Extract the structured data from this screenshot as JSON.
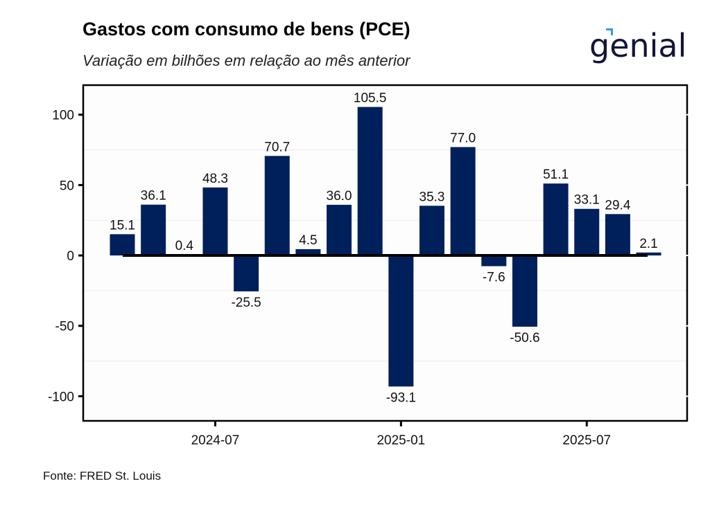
{
  "header": {
    "title": "Gastos com consumo de bens (PCE)",
    "subtitle": "Variação em bilhões em relação ao mês anterior"
  },
  "logo": {
    "text": "genial",
    "icon": "genial-logo-icon",
    "accent_color": "#2e9bf0",
    "text_color": "#13143a"
  },
  "footer": {
    "source": "Fonte: FRED St. Louis"
  },
  "colors": {
    "bar": "#00205b",
    "zero_line": "#000000",
    "grid": "#ececec",
    "axis": "#000000"
  },
  "chart_data": {
    "type": "bar",
    "title": "Gastos com consumo de bens (PCE)",
    "subtitle": "Variação em bilhões em relação ao mês anterior",
    "xlabel": "",
    "ylabel": "",
    "categories": [
      "2024-04",
      "2024-05",
      "2024-06",
      "2024-07",
      "2024-08",
      "2024-09",
      "2024-10",
      "2024-11",
      "2024-12",
      "2025-01",
      "2025-02",
      "2025-03",
      "2025-04",
      "2025-05",
      "2025-06",
      "2025-07",
      "2025-08",
      "2025-09"
    ],
    "values": [
      15.1,
      36.1,
      0.4,
      48.3,
      -25.5,
      70.7,
      4.5,
      36.0,
      105.5,
      -93.1,
      35.3,
      77.0,
      -7.6,
      -50.6,
      51.1,
      33.1,
      29.4,
      2.1
    ],
    "value_labels": [
      "15.1",
      "36.1",
      "0.4",
      "48.3",
      "-25.5",
      "70.7",
      "4.5",
      "36.0",
      "105.5",
      "-93.1",
      "35.3",
      "77.0",
      "-7.6",
      "-50.6",
      "51.1",
      "33.1",
      "29.4",
      "2.1"
    ],
    "ylim": [
      -117.5,
      121
    ],
    "yticks": [
      -100,
      -50,
      0,
      50,
      100
    ],
    "ytick_labels": [
      "-100",
      "-50",
      "0",
      "50",
      "100"
    ],
    "xticks": [
      "2024-07",
      "2025-01",
      "2025-07"
    ],
    "xtick_labels": [
      "2024-07",
      "2025-01",
      "2025-07"
    ],
    "grid": true,
    "legend": "none",
    "source": "Fonte: FRED St. Louis"
  }
}
